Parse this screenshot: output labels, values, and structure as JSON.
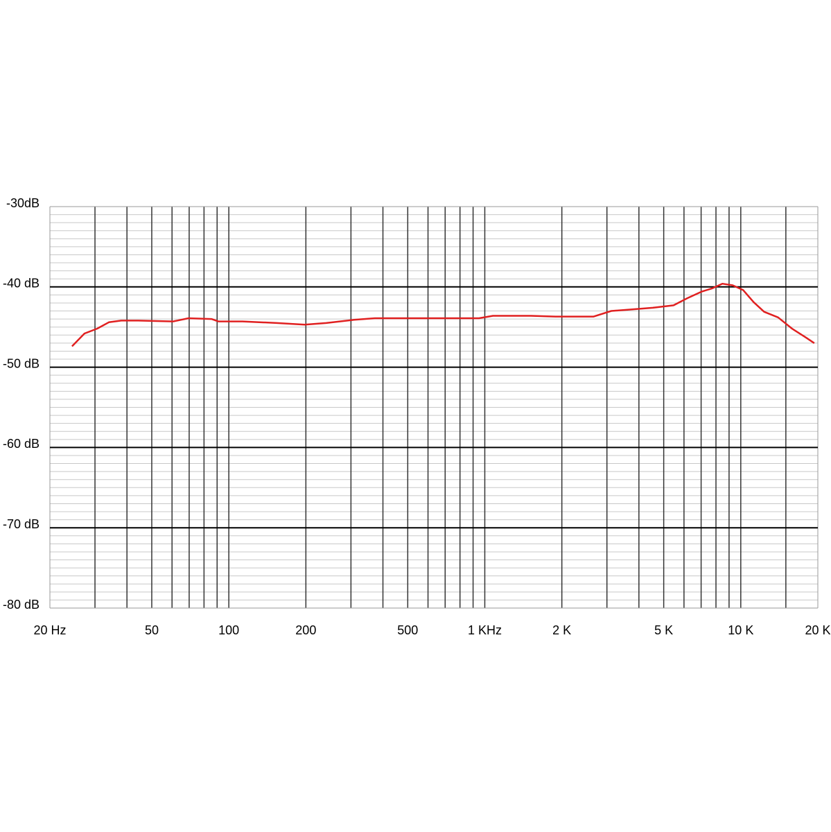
{
  "chart_data": {
    "type": "line",
    "xscale": "log",
    "color": "#e02020",
    "x": [
      24.4,
      27.3,
      30.6,
      34.0,
      38,
      44.3,
      60.6,
      69.6,
      85.6,
      91,
      113,
      154,
      198,
      240,
      308,
      372,
      541,
      949,
      1076,
      1516,
      1890,
      2662,
      3120,
      3760,
      4530,
      5460,
      6190,
      7020,
      7710,
      8470,
      9300,
      10220,
      11230,
      12340,
      13990,
      15860,
      17970,
      19370
    ],
    "values": [
      -47.4,
      -45.8,
      -45.2,
      -44.4,
      -44.2,
      -44.2,
      -44.3,
      -43.9,
      -44.0,
      -44.3,
      -44.3,
      -44.5,
      -44.7,
      -44.5,
      -44.1,
      -43.9,
      -43.9,
      -43.9,
      -43.6,
      -43.6,
      -43.7,
      -43.7,
      -43.0,
      -42.8,
      -42.6,
      -42.3,
      -41.4,
      -40.6,
      -40.2,
      -39.6,
      -39.8,
      -40.4,
      -41.9,
      -43.1,
      -43.8,
      -45.2,
      -46.3,
      -47.0
    ],
    "xlim": [
      20,
      20000
    ],
    "xticks": [
      {
        "value": 20,
        "label": "20 Hz"
      },
      50,
      100,
      200,
      500,
      {
        "value": 1000,
        "label": "1 KHz"
      },
      {
        "value": 2000,
        "label": "2 K"
      },
      {
        "value": 5000,
        "label": "5 K"
      },
      {
        "value": 10000,
        "label": "10 K"
      },
      {
        "value": 20000,
        "label": "20 K"
      }
    ],
    "xgrid": [
      30,
      40,
      50,
      60,
      70,
      80,
      90,
      100,
      200,
      300,
      400,
      500,
      600,
      700,
      800,
      900,
      1000,
      2000,
      3000,
      4000,
      5000,
      6000,
      7000,
      8000,
      9000,
      10000,
      15000
    ],
    "ylim": [
      -80,
      -30
    ],
    "yticks": [
      {
        "value": -30,
        "label": "-30dB"
      },
      {
        "value": -40,
        "label": "-40 dB"
      },
      {
        "value": -50,
        "label": "-50 dB"
      },
      {
        "value": -60,
        "label": "-60 dB"
      },
      {
        "value": -70,
        "label": "-70 dB"
      },
      {
        "value": -80,
        "label": "-80 dB"
      }
    ],
    "yminor": [
      -31,
      -32,
      -33,
      -34,
      -35,
      -36,
      -37,
      -38,
      -39,
      -41,
      -42,
      -43,
      -44,
      -45,
      -46,
      -47,
      -48,
      -49,
      -51,
      -52,
      -53,
      -54,
      -55,
      -56,
      -57,
      -58,
      -59,
      -61,
      -62,
      -63,
      -64,
      -65,
      -66,
      -67,
      -68,
      -69,
      -71,
      -72,
      -73,
      -74,
      -75,
      -76,
      -77,
      -78,
      -79
    ]
  }
}
